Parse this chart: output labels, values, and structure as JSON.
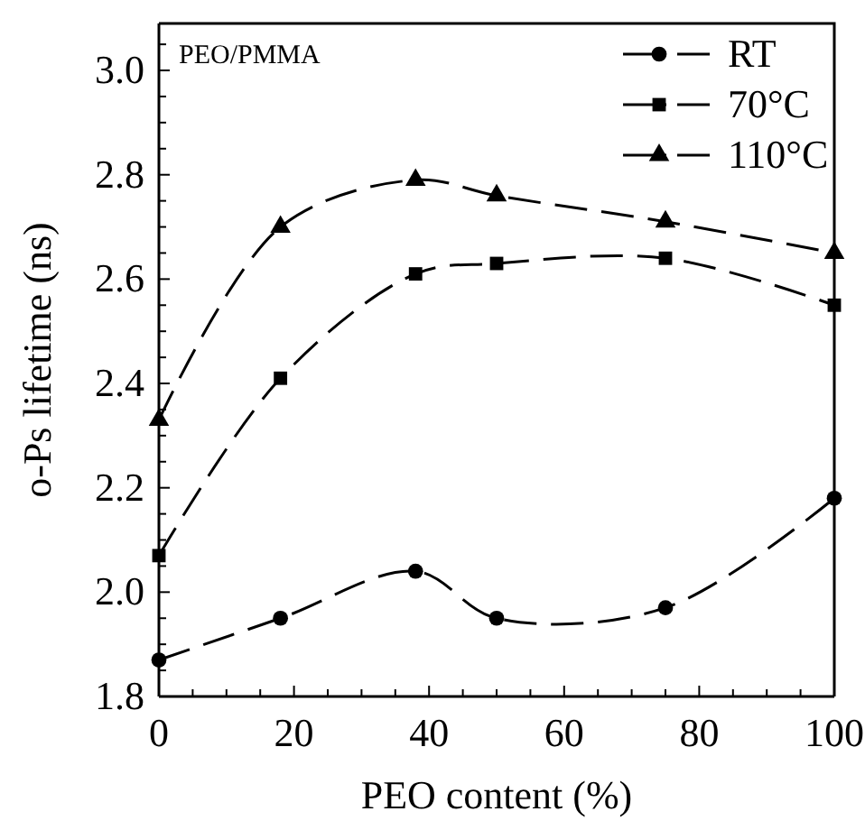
{
  "chart_data": {
    "type": "line",
    "xlabel": "PEO content (%)",
    "ylabel": "o-Ps lifetime (ns)",
    "annotations": [
      "PEO/PMMA"
    ],
    "x": [
      0,
      18,
      38,
      50,
      75,
      100
    ],
    "xlim": [
      0,
      100
    ],
    "ylim": [
      1.8,
      3.09
    ],
    "xticks": [
      0,
      {
        "value": 5,
        "label": null
      },
      {
        "value": 10,
        "label": null
      },
      {
        "value": 15,
        "label": null
      },
      20,
      {
        "value": 25,
        "label": null
      },
      {
        "value": 30,
        "label": null
      },
      {
        "value": 35,
        "label": null
      },
      40,
      {
        "value": 45,
        "label": null
      },
      {
        "value": 50,
        "label": null
      },
      {
        "value": 55,
        "label": null
      },
      60,
      {
        "value": 65,
        "label": null
      },
      {
        "value": 70,
        "label": null
      },
      {
        "value": 75,
        "label": null
      },
      80,
      {
        "value": 85,
        "label": null
      },
      {
        "value": 90,
        "label": null
      },
      {
        "value": 95,
        "label": null
      },
      100
    ],
    "yticks": [
      {
        "value": 1.8,
        "label": "1.8"
      },
      {
        "value": 1.85,
        "label": null
      },
      {
        "value": 1.9,
        "label": null
      },
      {
        "value": 1.95,
        "label": null
      },
      {
        "value": 2.0,
        "label": "2.0"
      },
      {
        "value": 2.05,
        "label": null
      },
      {
        "value": 2.1,
        "label": null
      },
      {
        "value": 2.15,
        "label": null
      },
      {
        "value": 2.2,
        "label": "2.2"
      },
      {
        "value": 2.25,
        "label": null
      },
      {
        "value": 2.3,
        "label": null
      },
      {
        "value": 2.35,
        "label": null
      },
      {
        "value": 2.4,
        "label": "2.4"
      },
      {
        "value": 2.45,
        "label": null
      },
      {
        "value": 2.5,
        "label": null
      },
      {
        "value": 2.55,
        "label": null
      },
      {
        "value": 2.6,
        "label": "2.6"
      },
      {
        "value": 2.65,
        "label": null
      },
      {
        "value": 2.7,
        "label": null
      },
      {
        "value": 2.75,
        "label": null
      },
      {
        "value": 2.8,
        "label": "2.8"
      },
      {
        "value": 2.85,
        "label": null
      },
      {
        "value": 2.9,
        "label": null
      },
      {
        "value": 2.95,
        "label": null
      },
      {
        "value": 3.0,
        "label": "3.0"
      },
      {
        "value": 3.05,
        "label": null
      }
    ],
    "grid": false,
    "legend": "top right",
    "line_style": "dashed",
    "series": [
      {
        "name": "RT",
        "color": "#000000",
        "marker": "circle",
        "values": [
          1.87,
          1.95,
          2.04,
          1.95,
          1.97,
          2.18
        ]
      },
      {
        "name": "70°C",
        "color": "#000000",
        "marker": "square",
        "values": [
          2.07,
          2.41,
          2.61,
          2.63,
          2.64,
          2.55
        ]
      },
      {
        "name": "110°C",
        "color": "#000000",
        "marker": "triangle",
        "values": [
          2.33,
          2.7,
          2.79,
          2.76,
          2.71,
          2.65
        ]
      }
    ]
  }
}
